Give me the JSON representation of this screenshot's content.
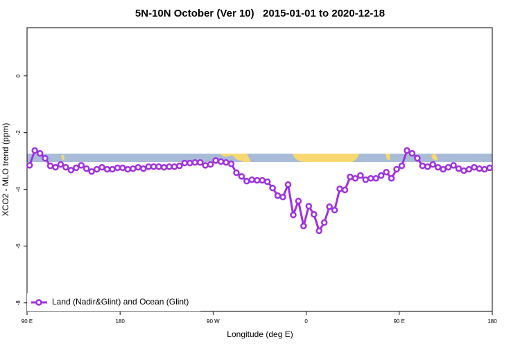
{
  "chart_data": {
    "type": "line",
    "title": "5N-10N October (Ver 10)   2015-01-01 to 2020-12-18",
    "x_label": "Longitude (deg E)",
    "y_label": "XCO2 - MLO trend (ppm)",
    "xlim": [
      90,
      540
    ],
    "ylim": [
      -8.3,
      1.7
    ],
    "xticks": [
      {
        "value": 90,
        "label": "90 E"
      },
      180,
      {
        "value": 270,
        "label": "90 W"
      },
      {
        "value": 360,
        "label": "0"
      },
      {
        "value": 450,
        "label": "90 E"
      },
      {
        "value": 540,
        "label": "180"
      }
    ],
    "yticks": [
      -8,
      -6,
      -4,
      -2,
      0
    ],
    "legend": "bottom-left",
    "x": [
      92.5,
      97.5,
      102.5,
      107.5,
      112.5,
      117.5,
      122.5,
      127.5,
      132.5,
      137.5,
      142.5,
      147.5,
      152.5,
      157.5,
      162.5,
      167.5,
      172.5,
      177.5,
      182.5,
      187.5,
      192.5,
      197.5,
      202.5,
      207.5,
      212.5,
      217.5,
      222.5,
      227.5,
      232.5,
      237.5,
      242.5,
      247.5,
      252.5,
      257.5,
      262.5,
      267.5,
      272.5,
      277.5,
      282.5,
      287.5,
      292.5,
      297.5,
      302.5,
      307.5,
      312.5,
      317.5,
      322.5,
      327.5,
      332.5,
      337.5,
      342.5,
      347.5,
      352.5,
      357.5,
      362.5,
      367.5,
      372.5,
      377.5,
      382.5,
      387.5,
      392.5,
      397.5,
      402.5,
      407.5,
      412.5,
      417.5,
      422.5,
      427.5,
      432.5,
      437.5,
      442.5,
      447.5,
      452.5,
      457.5,
      462.5,
      467.5,
      472.5,
      477.5,
      482.5,
      487.5,
      492.5,
      497.5,
      502.5,
      507.5,
      512.5,
      517.5,
      522.5,
      527.5,
      532.5,
      537.5
    ],
    "series": [
      {
        "name": "Land (Nadir&Glint) and Ocean (Glint)",
        "color": "#a030e0",
        "values": [
          -3.15,
          -2.63,
          -2.73,
          -2.9,
          -3.17,
          -3.22,
          -3.12,
          -3.22,
          -3.32,
          -3.24,
          -3.15,
          -3.27,
          -3.37,
          -3.29,
          -3.22,
          -3.29,
          -3.29,
          -3.24,
          -3.24,
          -3.29,
          -3.27,
          -3.22,
          -3.27,
          -3.2,
          -3.2,
          -3.2,
          -3.22,
          -3.2,
          -3.2,
          -3.17,
          -3.07,
          -3.07,
          -3.05,
          -3.05,
          -3.15,
          -3.12,
          -2.98,
          -3.02,
          -3.05,
          -3.1,
          -3.41,
          -3.54,
          -3.71,
          -3.66,
          -3.68,
          -3.68,
          -3.73,
          -3.95,
          -4.22,
          -4.27,
          -3.83,
          -4.9,
          -4.41,
          -5.29,
          -4.59,
          -4.88,
          -5.46,
          -5.17,
          -4.61,
          -4.73,
          -3.98,
          -4.02,
          -3.56,
          -3.61,
          -3.51,
          -3.66,
          -3.61,
          -3.61,
          -3.51,
          -3.39,
          -3.61,
          -3.29,
          -3.17,
          -2.63,
          -2.73,
          -2.9,
          -3.17,
          -3.2,
          -3.12,
          -3.22,
          -3.29,
          -3.22,
          -3.15,
          -3.27,
          -3.34,
          -3.29,
          -3.22,
          -3.27,
          -3.29,
          -3.24
        ]
      }
    ]
  }
}
